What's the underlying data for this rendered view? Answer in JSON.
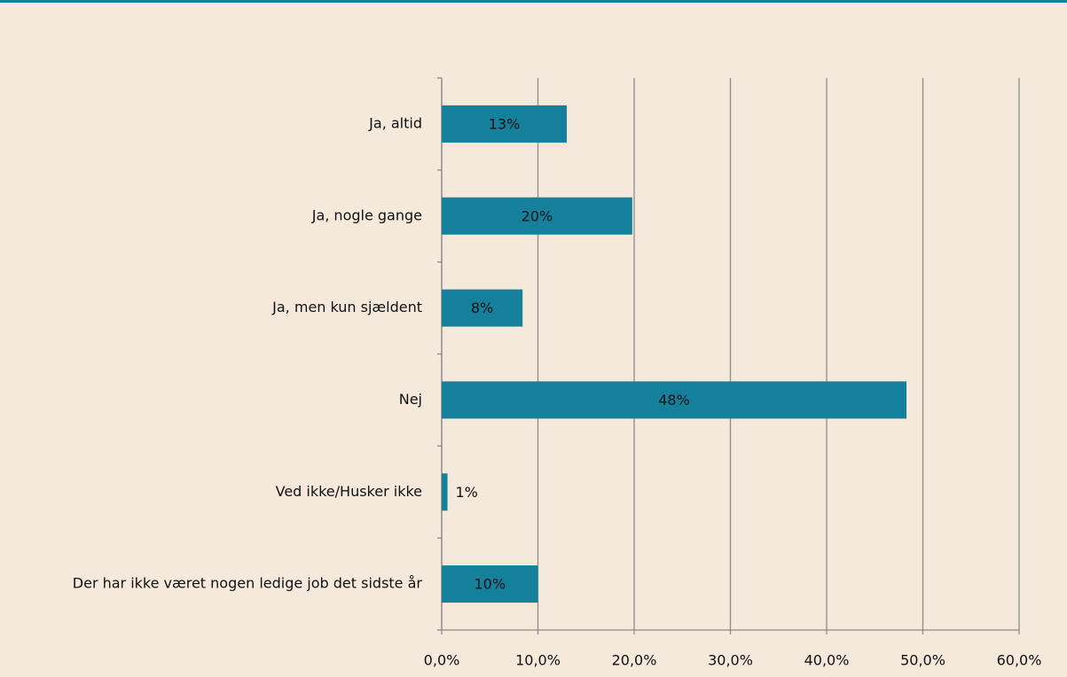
{
  "chart_data": {
    "type": "barh",
    "categories": [
      "Ja, altid",
      "Ja, nogle gange",
      "Ja, men kun sjældent",
      "Nej",
      "Ved ikke/Husker ikke",
      "Der har ikke været nogen ledige job det sidste år"
    ],
    "values": [
      13,
      19.8,
      8.4,
      48.3,
      0.6,
      10
    ],
    "value_labels": [
      "13%",
      "20%",
      "8%",
      "48%",
      "1%",
      "10%"
    ],
    "color": "#14809b",
    "xlim": [
      0,
      60
    ],
    "xticks": [
      {
        "value": 0,
        "label": "0,0%"
      },
      {
        "value": 10,
        "label": "10,0%"
      },
      {
        "value": 20,
        "label": "20,0%"
      },
      {
        "value": 30,
        "label": "30,0%"
      },
      {
        "value": 40,
        "label": "40,0%"
      },
      {
        "value": 50,
        "label": "50,0%"
      },
      {
        "value": 60,
        "label": "60,0%"
      }
    ],
    "grid": true
  }
}
